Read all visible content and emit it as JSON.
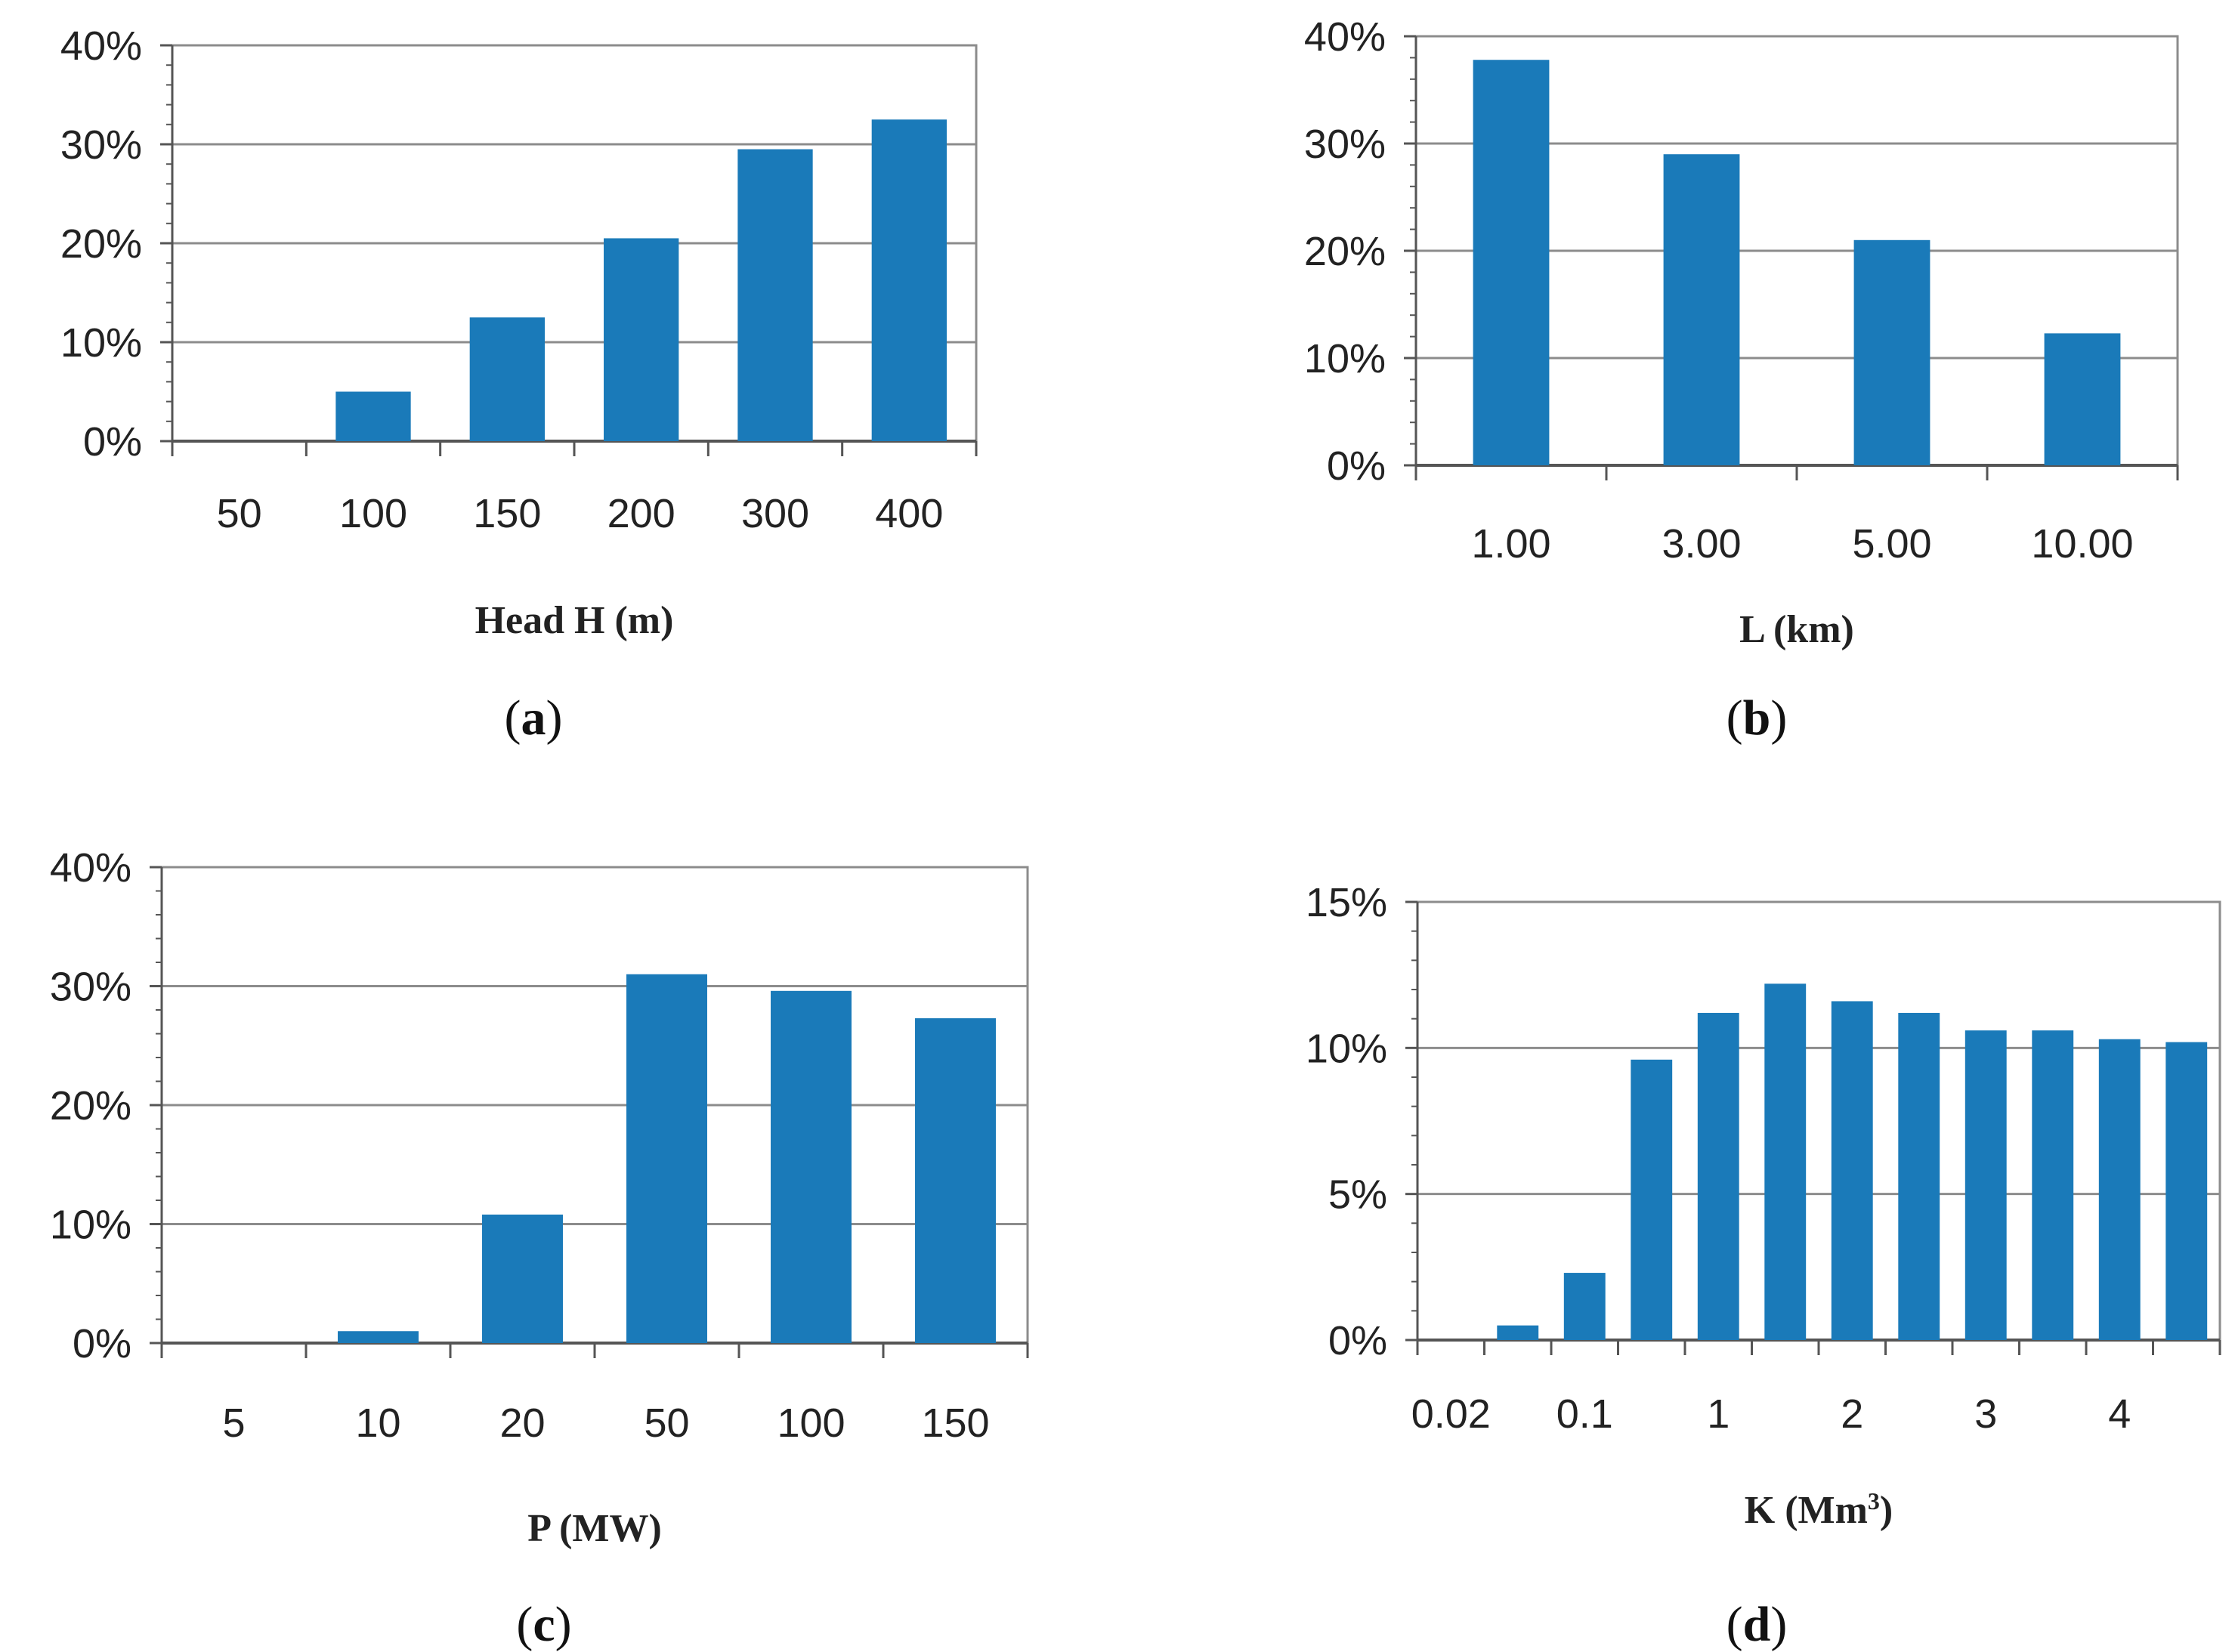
{
  "colors": {
    "bar": "#1a7ab9",
    "grid": "#8c8c8c",
    "axis": "#555555",
    "text": "#222222"
  },
  "chart_data": [
    {
      "type": "bar",
      "panel": "a",
      "caption_letter": "a",
      "xlabel": "Head H (m)",
      "categories": [
        "50",
        "100",
        "150",
        "200",
        "300",
        "400"
      ],
      "values": [
        0,
        5,
        12.5,
        20.5,
        29.5,
        32.5
      ],
      "ylim": [
        0,
        40
      ],
      "yticks": [
        "0%",
        "10%",
        "20%",
        "30%",
        "40%"
      ],
      "grid": true
    },
    {
      "type": "bar",
      "panel": "b",
      "caption_letter": "b",
      "xlabel": "L (km)",
      "categories": [
        "1.00",
        "3.00",
        "5.00",
        "10.00"
      ],
      "values": [
        37.8,
        29,
        21,
        12.3
      ],
      "ylim": [
        0,
        40
      ],
      "yticks": [
        "0%",
        "10%",
        "20%",
        "30%",
        "40%"
      ],
      "grid": true
    },
    {
      "type": "bar",
      "panel": "c",
      "caption_letter": "c",
      "xlabel": "P (MW)",
      "categories": [
        "5",
        "10",
        "20",
        "50",
        "100",
        "150"
      ],
      "values": [
        0,
        1,
        10.8,
        31,
        29.6,
        27.3
      ],
      "ylim": [
        0,
        40
      ],
      "yticks": [
        "0%",
        "10%",
        "20%",
        "30%",
        "40%"
      ],
      "grid": true
    },
    {
      "type": "bar",
      "panel": "d",
      "caption_letter": "d",
      "xlabel_main": "K (Mm",
      "xlabel_sup": "3",
      "xlabel_end": ")",
      "categories": [
        "0.02",
        "",
        "0.1",
        "",
        "1",
        "",
        "2",
        "",
        "3",
        "",
        "4",
        ""
      ],
      "tick_labels": [
        "0.02",
        "0.1",
        "1",
        "2",
        "3",
        "4"
      ],
      "values": [
        0,
        0.5,
        2.3,
        9.6,
        11.2,
        12.2,
        11.6,
        11.2,
        10.6,
        10.6,
        10.3,
        10.2
      ],
      "ylim": [
        0,
        15
      ],
      "yticks": [
        "0%",
        "5%",
        "10%",
        "15%"
      ],
      "grid": true
    }
  ]
}
